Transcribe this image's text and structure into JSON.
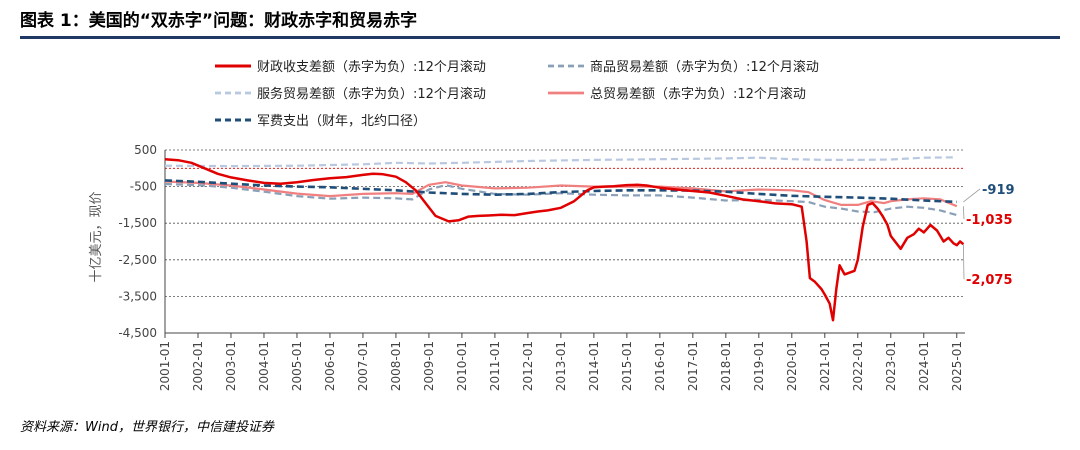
{
  "header": {
    "title": "图表 1：美国的“双赤字”问题：财政赤字和贸易赤字"
  },
  "footer": {
    "source": "资料来源：Wind，世界银行，中信建投证券"
  },
  "chart_data": {
    "type": "line",
    "ylabel": "十亿美元，现价",
    "ylim": [
      -4500,
      500
    ],
    "yticks": [
      500,
      -500,
      -1500,
      -2500,
      -3500,
      -4500
    ],
    "ytick_labels": [
      "500",
      "-500",
      "-1,500",
      "-2,500",
      "-3,500",
      "-4,500"
    ],
    "xlim": [
      2001.0,
      2025.25
    ],
    "xtick_labels": [
      "2001-01",
      "2002-01",
      "2003-01",
      "2004-01",
      "2005-01",
      "2006-01",
      "2007-01",
      "2008-01",
      "2009-01",
      "2010-01",
      "2011-01",
      "2012-01",
      "2013-01",
      "2014-01",
      "2015-01",
      "2016-01",
      "2017-01",
      "2018-01",
      "2019-01",
      "2020-01",
      "2021-01",
      "2022-01",
      "2023-01",
      "2024-01",
      "2025-01"
    ],
    "grid": "horizontal-dashed",
    "legend_position": "top",
    "annotations": [
      {
        "text": "-919",
        "value": -919,
        "color": "#1f4e79"
      },
      {
        "text": "-1,035",
        "value": -1035,
        "color": "#e00000"
      },
      {
        "text": "-2,075",
        "value": -2075,
        "color": "#e00000"
      }
    ],
    "series": [
      {
        "name": "财政收支差额（赤字为负）:12个月滚动",
        "color": "#e00000",
        "dash": "solid",
        "width": 2.5,
        "x": [
          2001.0,
          2001.4,
          2001.8,
          2002.2,
          2002.6,
          2003.0,
          2003.5,
          2004.0,
          2004.5,
          2005.0,
          2005.5,
          2006.0,
          2006.5,
          2007.0,
          2007.3,
          2007.6,
          2008.0,
          2008.3,
          2008.6,
          2008.9,
          2009.2,
          2009.6,
          2009.9,
          2010.2,
          2010.5,
          2010.8,
          2011.2,
          2011.6,
          2012.0,
          2012.3,
          2012.6,
          2013.0,
          2013.4,
          2013.8,
          2014.0,
          2014.3,
          2014.6,
          2015.0,
          2015.3,
          2015.6,
          2016.0,
          2016.5,
          2017.0,
          2017.5,
          2018.0,
          2018.5,
          2019.0,
          2019.5,
          2020.0,
          2020.3,
          2020.45,
          2020.55,
          2020.7,
          2020.9,
          2021.0,
          2021.15,
          2021.25,
          2021.35,
          2021.45,
          2021.6,
          2021.9,
          2022.0,
          2022.15,
          2022.3,
          2022.45,
          2022.6,
          2022.75,
          2022.9,
          2023.0,
          2023.3,
          2023.5,
          2023.7,
          2023.85,
          2024.0,
          2024.2,
          2024.4,
          2024.5,
          2024.6,
          2024.75,
          2024.9,
          2025.0,
          2025.1,
          2025.2
        ],
        "y": [
          250,
          220,
          150,
          0,
          -150,
          -250,
          -330,
          -400,
          -420,
          -380,
          -320,
          -270,
          -240,
          -180,
          -150,
          -160,
          -230,
          -380,
          -600,
          -950,
          -1300,
          -1450,
          -1420,
          -1320,
          -1300,
          -1290,
          -1270,
          -1280,
          -1220,
          -1180,
          -1150,
          -1080,
          -900,
          -600,
          -520,
          -500,
          -490,
          -460,
          -450,
          -470,
          -530,
          -580,
          -620,
          -660,
          -750,
          -850,
          -900,
          -960,
          -980,
          -1050,
          -2000,
          -3000,
          -3100,
          -3300,
          -3450,
          -3700,
          -4150,
          -3300,
          -2650,
          -2900,
          -2800,
          -2500,
          -1600,
          -1000,
          -950,
          -1100,
          -1300,
          -1550,
          -1850,
          -2200,
          -1900,
          -1800,
          -1650,
          -1750,
          -1550,
          -1700,
          -1850,
          -2000,
          -1900,
          -2050,
          -2100,
          -2000,
          -2075
        ]
      },
      {
        "name": "商品贸易差额（赤字为负）:12个月滚动",
        "color": "#8aa0b8",
        "dash": "dashed",
        "width": 2.2,
        "x": [
          2001.0,
          2002.0,
          2003.0,
          2004.0,
          2005.0,
          2006.0,
          2007.0,
          2008.0,
          2008.5,
          2009.0,
          2009.5,
          2010.0,
          2011.0,
          2012.0,
          2013.0,
          2014.0,
          2015.0,
          2016.0,
          2017.0,
          2018.0,
          2019.0,
          2020.0,
          2020.5,
          2021.0,
          2021.5,
          2022.0,
          2022.5,
          2023.0,
          2023.5,
          2024.0,
          2024.5,
          2025.0
        ],
        "y": [
          -430,
          -460,
          -530,
          -640,
          -760,
          -830,
          -800,
          -820,
          -850,
          -580,
          -460,
          -560,
          -700,
          -720,
          -680,
          -720,
          -740,
          -740,
          -800,
          -880,
          -860,
          -900,
          -920,
          -1050,
          -1100,
          -1180,
          -1200,
          -1100,
          -1050,
          -1080,
          -1150,
          -1280
        ]
      },
      {
        "name": "服务贸易差额（赤字为负）:12个月滚动",
        "color": "#b8c8e0",
        "dash": "dashed",
        "width": 2.2,
        "x": [
          2001.0,
          2003.0,
          2005.0,
          2007.0,
          2008.0,
          2009.0,
          2010.0,
          2012.0,
          2014.0,
          2016.0,
          2018.0,
          2019.0,
          2020.0,
          2020.5,
          2021.0,
          2022.0,
          2023.0,
          2024.0,
          2025.0
        ],
        "y": [
          70,
          60,
          70,
          110,
          150,
          130,
          150,
          200,
          230,
          250,
          270,
          290,
          250,
          240,
          230,
          230,
          240,
          290,
          300
        ]
      },
      {
        "name": "总贸易差额（赤字为负）:12个月滚动",
        "color": "#f08080",
        "dash": "solid",
        "width": 2.2,
        "x": [
          2001.0,
          2002.0,
          2003.0,
          2004.0,
          2005.0,
          2006.0,
          2007.0,
          2008.0,
          2008.5,
          2009.0,
          2009.5,
          2010.0,
          2011.0,
          2012.0,
          2013.0,
          2014.0,
          2015.0,
          2016.0,
          2017.0,
          2018.0,
          2019.0,
          2020.0,
          2020.5,
          2021.0,
          2021.5,
          2022.0,
          2022.4,
          2022.8,
          2023.0,
          2023.5,
          2024.0,
          2024.5,
          2025.0
        ],
        "y": [
          -360,
          -400,
          -470,
          -580,
          -690,
          -760,
          -700,
          -680,
          -700,
          -450,
          -380,
          -470,
          -550,
          -530,
          -470,
          -500,
          -500,
          -500,
          -550,
          -630,
          -580,
          -600,
          -650,
          -870,
          -1000,
          -1000,
          -900,
          -950,
          -900,
          -850,
          -820,
          -850,
          -1035
        ]
      },
      {
        "name": "军费支出（财年，北约口径）",
        "color": "#1f4e79",
        "dash": "dashed",
        "width": 2.6,
        "x": [
          2001.0,
          2002.0,
          2003.0,
          2004.0,
          2005.0,
          2006.0,
          2007.0,
          2008.0,
          2009.0,
          2010.0,
          2011.0,
          2012.0,
          2013.0,
          2014.0,
          2015.0,
          2016.0,
          2017.0,
          2018.0,
          2019.0,
          2020.0,
          2021.0,
          2022.0,
          2023.0,
          2024.0,
          2025.0
        ],
        "y": [
          -330,
          -370,
          -420,
          -470,
          -500,
          -520,
          -560,
          -600,
          -660,
          -700,
          -720,
          -700,
          -650,
          -620,
          -600,
          -600,
          -610,
          -640,
          -700,
          -750,
          -780,
          -800,
          -830,
          -880,
          -919
        ]
      }
    ]
  }
}
